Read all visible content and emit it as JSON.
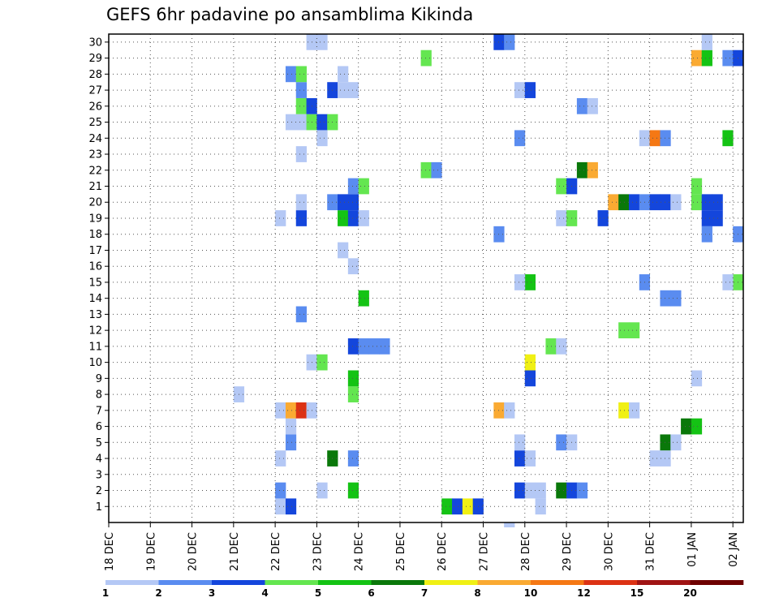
{
  "chart_data": {
    "type": "heatmap",
    "title": "GEFS 6hr padavine po ansamblima Kikinda",
    "xlabel": "",
    "ylabel": "",
    "x_tick_labels": [
      "18 DEC",
      "19 DEC",
      "20 DEC",
      "21 DEC",
      "22 DEC",
      "23 DEC",
      "24 DEC",
      "25 DEC",
      "26 DEC",
      "27 DEC",
      "28 DEC",
      "29 DEC",
      "30 DEC",
      "31 DEC",
      "01 JAN",
      "02 JAN"
    ],
    "y_tick_labels": [
      "1",
      "2",
      "3",
      "4",
      "5",
      "6",
      "7",
      "8",
      "9",
      "10",
      "11",
      "12",
      "13",
      "14",
      "15",
      "16",
      "17",
      "18",
      "19",
      "20",
      "21",
      "22",
      "23",
      "24",
      "25",
      "26",
      "27",
      "28",
      "29",
      "30"
    ],
    "xlim": [
      0,
      61
    ],
    "ylim": [
      0.5,
      30.5
    ],
    "grid": true,
    "colorbar_ticks": [
      "1",
      "2",
      "3",
      "4",
      "5",
      "6",
      "7",
      "8",
      "10",
      "12",
      "15",
      "20"
    ],
    "colorbar_colors": [
      "#b4c8f5",
      "#5a8cf0",
      "#1446dc",
      "#64e650",
      "#14c314",
      "#0a780a",
      "#f0f014",
      "#faaa32",
      "#f57814",
      "#dc3214",
      "#a01414",
      "#6e0000"
    ],
    "cells_note_units": "x = 6-hour step index from 18 DEC 00Z, y = ensemble member, v = 6hr precipitation (mm)",
    "cells": [
      [
        16,
        1,
        1
      ],
      [
        17,
        1,
        3
      ],
      [
        32,
        1,
        5
      ],
      [
        33,
        1,
        3
      ],
      [
        34,
        1,
        7
      ],
      [
        35,
        1,
        3
      ],
      [
        41,
        1,
        1
      ],
      [
        16,
        2,
        2
      ],
      [
        20,
        2,
        1
      ],
      [
        23,
        2,
        5
      ],
      [
        39,
        2,
        3
      ],
      [
        40,
        2,
        1
      ],
      [
        41,
        2,
        1
      ],
      [
        43,
        2,
        6
      ],
      [
        44,
        2,
        3
      ],
      [
        45,
        2,
        2
      ],
      [
        16,
        4,
        1
      ],
      [
        21,
        4,
        6
      ],
      [
        23,
        4,
        2
      ],
      [
        39,
        4,
        3
      ],
      [
        40,
        4,
        1
      ],
      [
        52,
        4,
        1
      ],
      [
        53,
        4,
        1
      ],
      [
        17,
        5,
        2
      ],
      [
        39,
        5,
        1
      ],
      [
        43,
        5,
        2
      ],
      [
        44,
        5,
        1
      ],
      [
        53,
        5,
        6
      ],
      [
        54,
        5,
        1
      ],
      [
        17,
        6,
        1
      ],
      [
        55,
        6,
        6
      ],
      [
        56,
        6,
        5
      ],
      [
        16,
        7,
        1
      ],
      [
        17,
        7,
        8
      ],
      [
        18,
        7,
        13
      ],
      [
        19,
        7,
        1
      ],
      [
        37,
        7,
        8
      ],
      [
        38,
        7,
        1
      ],
      [
        49,
        7,
        7
      ],
      [
        50,
        7,
        1
      ],
      [
        12,
        8,
        1
      ],
      [
        23,
        8,
        4
      ],
      [
        23,
        9,
        5
      ],
      [
        40,
        9,
        3
      ],
      [
        56,
        9,
        1
      ],
      [
        19,
        10,
        1
      ],
      [
        20,
        10,
        4
      ],
      [
        40,
        10,
        7
      ],
      [
        23,
        11,
        3
      ],
      [
        24,
        11,
        2
      ],
      [
        25,
        11,
        2
      ],
      [
        26,
        11,
        2
      ],
      [
        42,
        11,
        4
      ],
      [
        43,
        11,
        1
      ],
      [
        49,
        12,
        4
      ],
      [
        50,
        12,
        4
      ],
      [
        18,
        13,
        2
      ],
      [
        24,
        14,
        5
      ],
      [
        53,
        14,
        2
      ],
      [
        54,
        14,
        2
      ],
      [
        40,
        15,
        5
      ],
      [
        39,
        15,
        1
      ],
      [
        51,
        15,
        2
      ],
      [
        60,
        15,
        4
      ],
      [
        59,
        15,
        1
      ],
      [
        23,
        16,
        1
      ],
      [
        22,
        17,
        1
      ],
      [
        37,
        18,
        2
      ],
      [
        57,
        18,
        2
      ],
      [
        60,
        18,
        2
      ],
      [
        16,
        19,
        1
      ],
      [
        18,
        19,
        3
      ],
      [
        22,
        19,
        5
      ],
      [
        23,
        19,
        3
      ],
      [
        24,
        19,
        1
      ],
      [
        43,
        19,
        1
      ],
      [
        44,
        19,
        4
      ],
      [
        47,
        19,
        3
      ],
      [
        57,
        19,
        3
      ],
      [
        58,
        19,
        3
      ],
      [
        18,
        20,
        1
      ],
      [
        21,
        20,
        2
      ],
      [
        22,
        20,
        3
      ],
      [
        23,
        20,
        3
      ],
      [
        48,
        20,
        8
      ],
      [
        49,
        20,
        6
      ],
      [
        50,
        20,
        3
      ],
      [
        51,
        20,
        2
      ],
      [
        52,
        20,
        3
      ],
      [
        53,
        20,
        3
      ],
      [
        54,
        20,
        1
      ],
      [
        56,
        20,
        4
      ],
      [
        57,
        20,
        3
      ],
      [
        58,
        20,
        3
      ],
      [
        23,
        21,
        2
      ],
      [
        24,
        21,
        4
      ],
      [
        43,
        21,
        4
      ],
      [
        44,
        21,
        3
      ],
      [
        56,
        21,
        4
      ],
      [
        30,
        22,
        4
      ],
      [
        31,
        22,
        2
      ],
      [
        45,
        22,
        6
      ],
      [
        46,
        22,
        8
      ],
      [
        18,
        23,
        1
      ],
      [
        20,
        24,
        1
      ],
      [
        39,
        24,
        2
      ],
      [
        51,
        24,
        1
      ],
      [
        52,
        24,
        10
      ],
      [
        53,
        24,
        2
      ],
      [
        59,
        24,
        5
      ],
      [
        17,
        25,
        1
      ],
      [
        18,
        25,
        1
      ],
      [
        19,
        25,
        4
      ],
      [
        20,
        25,
        3
      ],
      [
        21,
        25,
        4
      ],
      [
        18,
        26,
        4
      ],
      [
        19,
        26,
        3
      ],
      [
        45,
        26,
        2
      ],
      [
        46,
        26,
        1
      ],
      [
        18,
        27,
        2
      ],
      [
        21,
        27,
        3
      ],
      [
        22,
        27,
        1
      ],
      [
        23,
        27,
        1
      ],
      [
        39,
        27,
        1
      ],
      [
        40,
        27,
        3
      ],
      [
        17,
        28,
        2
      ],
      [
        18,
        28,
        4
      ],
      [
        22,
        28,
        1
      ],
      [
        30,
        29,
        4
      ],
      [
        56,
        29,
        8
      ],
      [
        57,
        29,
        5
      ],
      [
        59,
        29,
        2
      ],
      [
        60,
        29,
        3
      ],
      [
        19,
        30,
        1
      ],
      [
        20,
        30,
        1
      ],
      [
        37,
        30,
        3
      ],
      [
        38,
        30,
        2
      ],
      [
        57,
        30,
        1
      ]
    ]
  },
  "extra_cells": [
    [
      38,
      0,
      1
    ]
  ]
}
